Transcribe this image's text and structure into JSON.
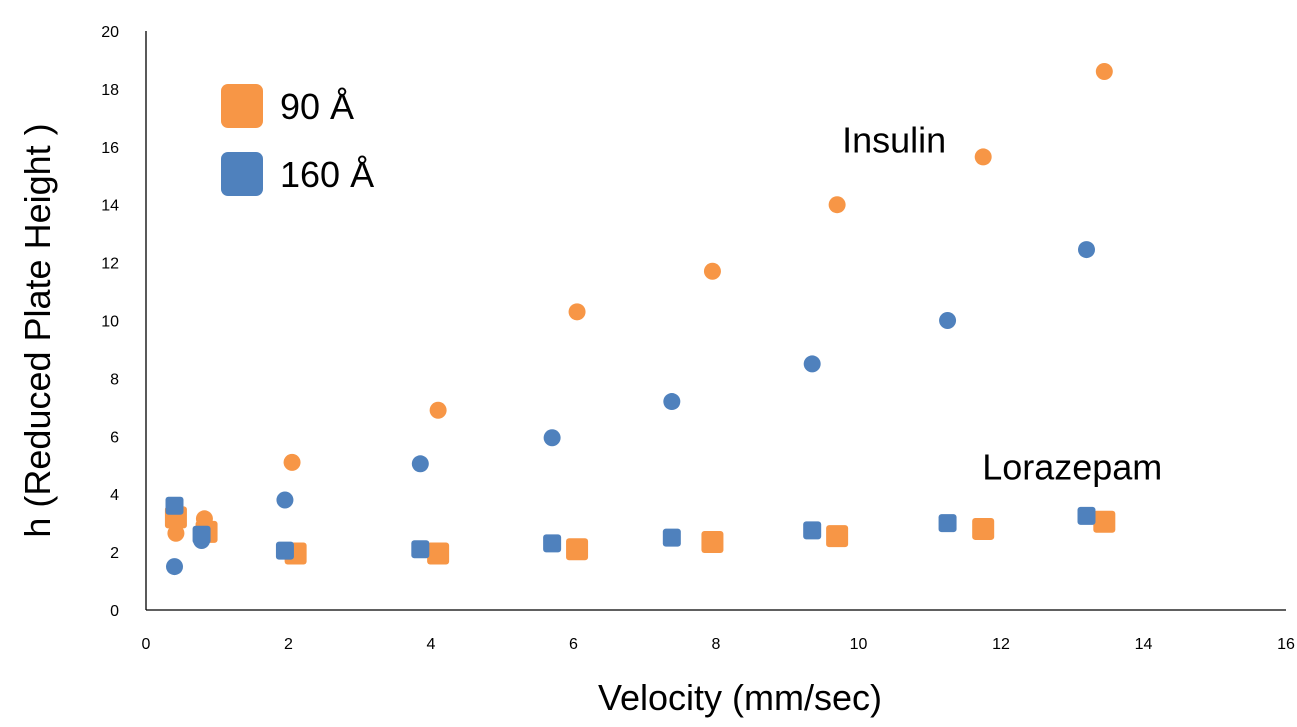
{
  "chart_data": {
    "type": "scatter",
    "title": "",
    "xlabel": "Velocity (mm/sec)",
    "ylabel": "h (Reduced Plate Height )",
    "xlim": [
      0,
      16
    ],
    "ylim": [
      0,
      20
    ],
    "x_ticks": [
      0,
      2,
      4,
      6,
      8,
      10,
      12,
      14,
      16
    ],
    "y_ticks": [
      0,
      2,
      4,
      6,
      8,
      10,
      12,
      14,
      16,
      18,
      20
    ],
    "grid": false,
    "legend_position": "top-left",
    "legend": [
      {
        "label": "90 Å",
        "color": "#F79646"
      },
      {
        "label": "160 Å",
        "color": "#4F81BD"
      }
    ],
    "annotations": [
      {
        "text": "Insulin",
        "x": 10.5,
        "y": 15.8
      },
      {
        "text": "Lorazepam",
        "x": 13.0,
        "y": 4.5
      }
    ],
    "series": [
      {
        "analyte": "Insulin",
        "pore_size": "90 Å",
        "marker": "circle",
        "color": "#F79646",
        "points": [
          {
            "x": 0.42,
            "y": 2.65
          },
          {
            "x": 0.82,
            "y": 3.15
          },
          {
            "x": 2.05,
            "y": 5.1
          },
          {
            "x": 4.1,
            "y": 6.9
          },
          {
            "x": 6.05,
            "y": 10.3
          },
          {
            "x": 7.95,
            "y": 11.7
          },
          {
            "x": 9.7,
            "y": 14.0
          },
          {
            "x": 11.75,
            "y": 15.65
          },
          {
            "x": 13.45,
            "y": 18.6
          }
        ]
      },
      {
        "analyte": "Insulin",
        "pore_size": "160 Å",
        "marker": "circle",
        "color": "#4F81BD",
        "points": [
          {
            "x": 0.4,
            "y": 1.5
          },
          {
            "x": 0.78,
            "y": 2.4
          },
          {
            "x": 1.95,
            "y": 3.8
          },
          {
            "x": 3.85,
            "y": 5.05
          },
          {
            "x": 5.7,
            "y": 5.95
          },
          {
            "x": 7.38,
            "y": 7.2
          },
          {
            "x": 9.35,
            "y": 8.5
          },
          {
            "x": 11.25,
            "y": 10.0
          },
          {
            "x": 13.2,
            "y": 12.45
          }
        ]
      },
      {
        "analyte": "Lorazepam",
        "pore_size": "90 Å",
        "marker": "square",
        "color": "#F79646",
        "points": [
          {
            "x": 0.42,
            "y": 3.2
          },
          {
            "x": 0.85,
            "y": 2.7
          },
          {
            "x": 2.1,
            "y": 1.95
          },
          {
            "x": 4.1,
            "y": 1.95
          },
          {
            "x": 6.05,
            "y": 2.1
          },
          {
            "x": 7.95,
            "y": 2.35
          },
          {
            "x": 9.7,
            "y": 2.55
          },
          {
            "x": 11.75,
            "y": 2.8
          },
          {
            "x": 13.45,
            "y": 3.05
          }
        ]
      },
      {
        "analyte": "Lorazepam",
        "pore_size": "160 Å",
        "marker": "square",
        "color": "#4F81BD",
        "points": [
          {
            "x": 0.4,
            "y": 3.6
          },
          {
            "x": 0.78,
            "y": 2.6
          },
          {
            "x": 1.95,
            "y": 2.05
          },
          {
            "x": 3.85,
            "y": 2.1
          },
          {
            "x": 5.7,
            "y": 2.3
          },
          {
            "x": 7.38,
            "y": 2.5
          },
          {
            "x": 9.35,
            "y": 2.75
          },
          {
            "x": 11.25,
            "y": 3.0
          },
          {
            "x": 13.2,
            "y": 3.25
          }
        ]
      }
    ]
  }
}
